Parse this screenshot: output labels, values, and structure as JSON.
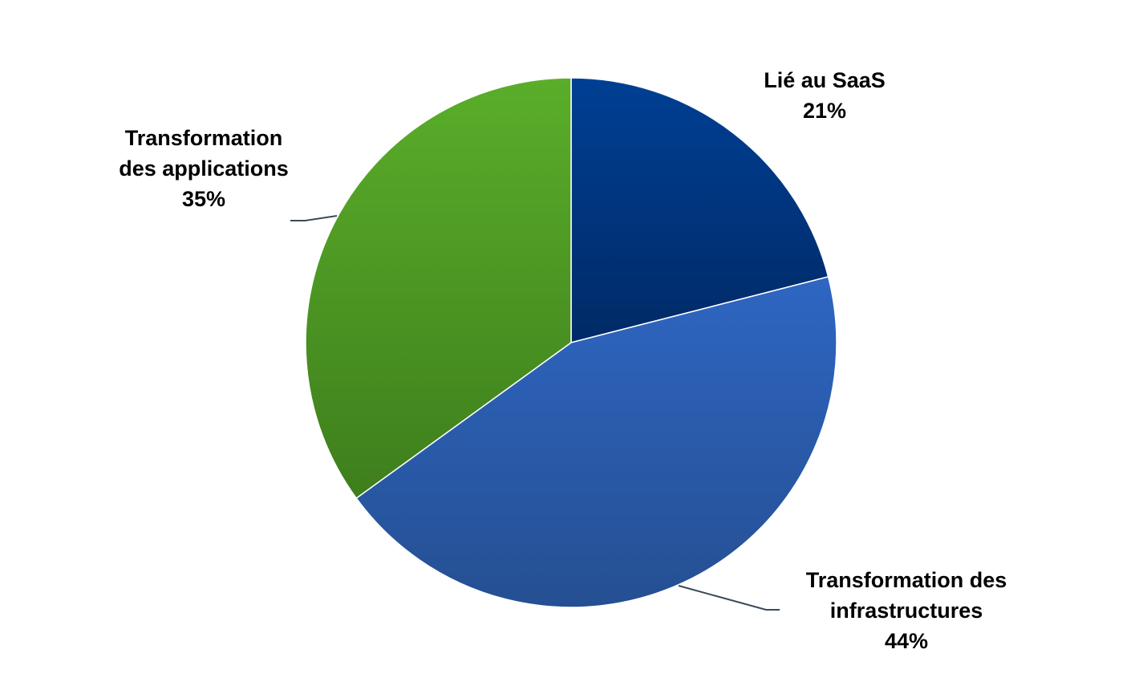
{
  "chart_data": {
    "type": "pie",
    "title": "",
    "slices": [
      {
        "name": "Lié au SaaS",
        "value": 21,
        "label": "21%",
        "color_light": "#003f94",
        "color_dark": "#002a66"
      },
      {
        "name": "Transformation des infrastructures",
        "value": 44,
        "label": "44%",
        "color_light": "#2e66c2",
        "color_dark": "#254f92"
      },
      {
        "name": "Transformation des applications",
        "value": 35,
        "label": "35%",
        "color_light": "#5aae2a",
        "color_dark": "#3e7e1c"
      }
    ],
    "start_angle_deg": 0,
    "direction": "clockwise",
    "legend": "none",
    "data_labels": "category-name-and-percent"
  }
}
